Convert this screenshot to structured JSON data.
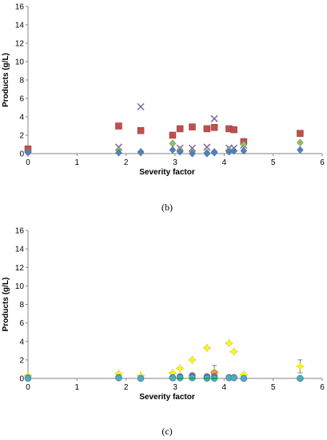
{
  "colors": {
    "red_square": "#c0504d",
    "blue_diamond": "#4f81bd",
    "green_triangle": "#9bbb59",
    "purple_x": "#8064a2",
    "olive_diamond": "#9bbb59",
    "yellow_star": "#ffff00",
    "orange": "#f79646",
    "purple_circle": "#8064a2",
    "gray_errorbar": "#808080",
    "axis": "#868686"
  },
  "chart_data": [
    {
      "panel_label": "(b)",
      "type": "scatter",
      "xlabel": "Severity factor",
      "ylabel": "Products (g/L)",
      "xlim": [
        0,
        6
      ],
      "ylim": [
        0,
        16
      ],
      "xticks": [
        "0",
        "1",
        "2",
        "3",
        "4",
        "5",
        "6"
      ],
      "yticks": [
        "0",
        "2",
        "4",
        "6",
        "8",
        "10",
        "12",
        "14",
        "16"
      ],
      "grid": false,
      "series": [
        {
          "marker": "square",
          "color": "#c0504d",
          "x": [
            0,
            1.85,
            2.3,
            2.95,
            3.1,
            3.35,
            3.65,
            3.8,
            4.1,
            4.2,
            4.4,
            5.55
          ],
          "y": [
            0.5,
            3.0,
            2.5,
            2.0,
            2.7,
            2.9,
            2.7,
            2.85,
            2.7,
            2.6,
            1.3,
            2.2
          ]
        },
        {
          "marker": "x",
          "color": "#8064a2",
          "x": [
            1.85,
            2.3,
            3.1,
            3.35,
            3.65,
            3.8,
            4.1,
            4.2,
            4.4
          ],
          "y": [
            0.7,
            5.1,
            0.6,
            0.6,
            0.7,
            3.8,
            0.6,
            0.6,
            0.9
          ]
        },
        {
          "marker": "diamond",
          "color": "#9bbb59",
          "x": [
            0,
            1.85,
            2.3,
            2.95,
            3.1,
            3.35,
            3.65,
            3.8,
            4.1,
            4.2,
            4.4,
            5.55
          ],
          "y": [
            0.2,
            0.4,
            0.1,
            1.1,
            0.4,
            0.2,
            0.1,
            0.2,
            0.4,
            0.3,
            1.0,
            1.2
          ]
        },
        {
          "marker": "diamond",
          "color": "#4f81bd",
          "x": [
            0,
            1.85,
            2.3,
            2.95,
            3.1,
            3.35,
            3.65,
            3.8,
            4.1,
            4.2,
            4.4,
            5.55
          ],
          "y": [
            0.1,
            0.1,
            0.2,
            0.4,
            0.2,
            0.0,
            0.0,
            0.1,
            0.2,
            0.3,
            0.3,
            0.4
          ]
        }
      ]
    },
    {
      "panel_label": "(c)",
      "type": "scatter",
      "xlabel": "Severity factor",
      "ylabel": "Products (g/L)",
      "xlim": [
        0,
        6
      ],
      "ylim": [
        0,
        16
      ],
      "xticks": [
        "0",
        "1",
        "2",
        "3",
        "4",
        "5",
        "6"
      ],
      "yticks": [
        "0",
        "2",
        "4",
        "6",
        "8",
        "10",
        "12",
        "14",
        "16"
      ],
      "grid": false,
      "series": [
        {
          "marker": "star",
          "color": "#ffff00",
          "x": [
            0,
            1.85,
            2.3,
            2.95,
            3.1,
            3.35,
            3.65,
            3.8,
            4.1,
            4.2,
            4.4,
            5.55
          ],
          "y": [
            0.3,
            0.5,
            0.3,
            0.6,
            1.1,
            2.0,
            3.3,
            0.7,
            3.8,
            2.9,
            0.4,
            1.3
          ],
          "err": [
            0,
            0.1,
            0,
            0.1,
            0.1,
            0.1,
            0.1,
            0.7,
            0.1,
            0.1,
            0.1,
            0.7
          ]
        },
        {
          "marker": "circle",
          "color": "#f79646",
          "x": [
            3.8
          ],
          "y": [
            0.6
          ]
        },
        {
          "marker": "circle",
          "color": "#8064a2",
          "x": [
            0,
            1.85,
            2.3,
            2.95,
            3.1,
            3.35,
            3.65,
            3.8,
            4.1,
            4.2,
            4.4,
            5.55
          ],
          "y": [
            0.05,
            0.1,
            0.0,
            0.1,
            0.2,
            0.3,
            0.2,
            0.2,
            0.1,
            0.1,
            0.0,
            0.0
          ]
        },
        {
          "marker": "circle",
          "color": "#4bacc6",
          "x": [
            0,
            1.85,
            2.3,
            2.95,
            3.1,
            3.35,
            3.65,
            3.8,
            4.1,
            4.2,
            4.4,
            5.55
          ],
          "y": [
            0.0,
            0.05,
            0.0,
            0.05,
            0.05,
            0.05,
            0.0,
            0.0,
            0.05,
            0.05,
            0.0,
            0.0
          ]
        },
        {
          "marker": "dash",
          "color": "#00b050",
          "x": [
            3.1,
            3.35,
            3.65,
            3.8
          ],
          "y": [
            0.0,
            0.0,
            0.0,
            0.0
          ]
        }
      ]
    }
  ]
}
